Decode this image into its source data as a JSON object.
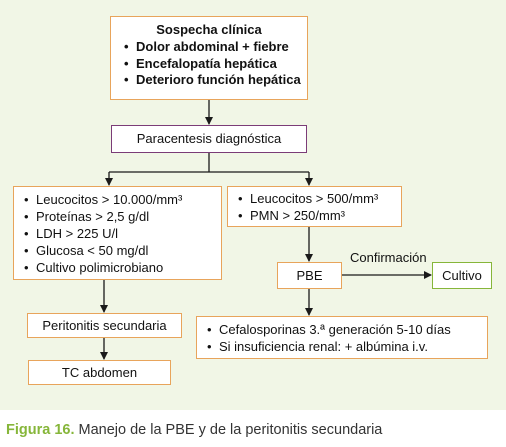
{
  "sospecha": {
    "title": "Sospecha clínica",
    "items": [
      "Dolor abdominal + fiebre",
      "Encefalopatía hepática",
      "Deterioro función hepática"
    ]
  },
  "paracentesis": "Paracentesis diagnóstica",
  "secundaria_criterios": [
    "Leucocitos > 10.000/mm³",
    "Proteínas > 2,5 g/dl",
    "LDH > 225 U/l",
    "Glucosa < 50 mg/dl",
    "Cultivo polimicrobiano"
  ],
  "pbe_criterios": [
    "Leucocitos > 500/mm³",
    "PMN > 250/mm³"
  ],
  "pbe": "PBE",
  "confirmacion": "Confirmación",
  "cultivo": "Cultivo",
  "peritonitis_secundaria": "Peritonitis secundaria",
  "tc_abdomen": "TC abdomen",
  "tratamiento": [
    "Cefalosporinas 3.ª generación 5-10 días",
    "Si insuficiencia renal: + albúmina i.v."
  ],
  "caption": {
    "figure": "Figura 16.",
    "text": "Manejo de la PBE y de la peritonitis secundaria"
  },
  "colors": {
    "panel": "#f1f6e6",
    "green": "#86b63a",
    "orange": "#e8a45b",
    "purple": "#7b3c77"
  }
}
